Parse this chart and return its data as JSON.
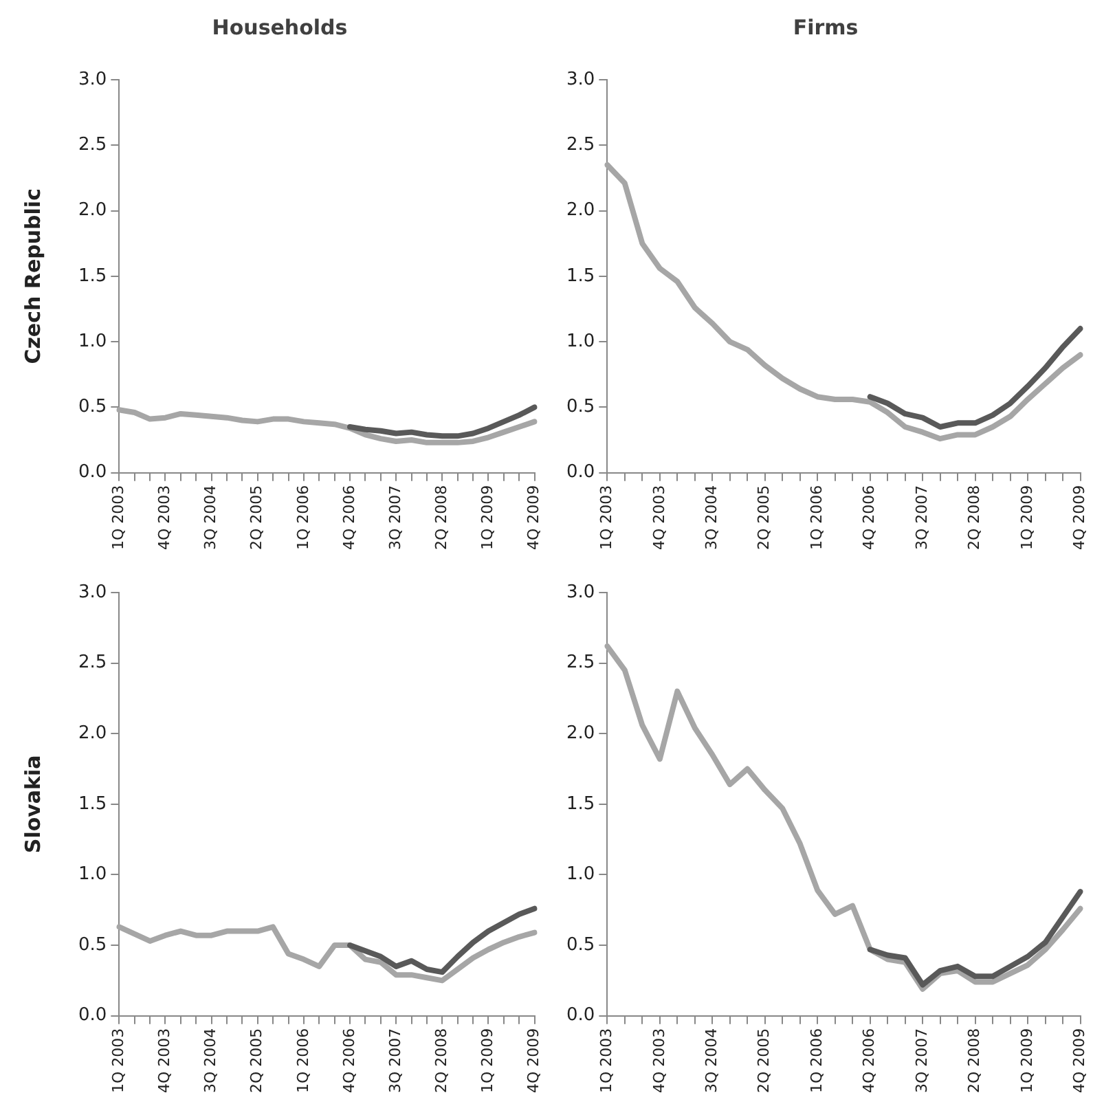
{
  "chart_data": [
    {
      "type": "line",
      "title": "Households",
      "ylabel": "Czech Republic",
      "categories": [
        "1Q 2003",
        null,
        null,
        "4Q 2003",
        null,
        null,
        "3Q 2004",
        null,
        null,
        "2Q 2005",
        null,
        null,
        "1Q 2006",
        null,
        null,
        "4Q 2006",
        null,
        null,
        "3Q 2007",
        null,
        null,
        "2Q 2008",
        null,
        null,
        "1Q 2009",
        null,
        null,
        "4Q 2009"
      ],
      "series": [
        {
          "color": "#595959",
          "values": [
            null,
            null,
            null,
            null,
            null,
            null,
            null,
            null,
            null,
            null,
            null,
            null,
            null,
            null,
            null,
            0.35,
            0.33,
            0.32,
            0.3,
            0.31,
            0.29,
            0.28,
            0.28,
            0.3,
            0.34,
            0.39,
            0.44,
            0.5
          ]
        },
        {
          "color": "#a6a6a6",
          "values": [
            0.48,
            0.46,
            0.41,
            0.42,
            0.45,
            0.44,
            0.43,
            0.42,
            0.4,
            0.39,
            0.41,
            0.41,
            0.39,
            0.38,
            0.37,
            0.34,
            0.29,
            0.26,
            0.24,
            0.25,
            0.23,
            0.23,
            0.23,
            0.24,
            0.27,
            0.31,
            0.35,
            0.39
          ]
        }
      ],
      "ylim": [
        0,
        3
      ],
      "yticks": [
        {
          "value": 0,
          "label": "0.0"
        },
        {
          "value": 0.5,
          "label": "0.5"
        },
        {
          "value": 1,
          "label": "1.0"
        },
        {
          "value": 1.5,
          "label": "1.5"
        },
        {
          "value": 2,
          "label": "2.0"
        },
        {
          "value": 2.5,
          "label": "2.5"
        },
        {
          "value": 3,
          "label": "3.0"
        }
      ],
      "marker": "none",
      "line_style": "solid"
    },
    {
      "type": "line",
      "title": "Firms",
      "categories": [
        "1Q 2003",
        null,
        null,
        "4Q 2003",
        null,
        null,
        "3Q 2004",
        null,
        null,
        "2Q 2005",
        null,
        null,
        "1Q 2006",
        null,
        null,
        "4Q 2006",
        null,
        null,
        "3Q 2007",
        null,
        null,
        "2Q 2008",
        null,
        null,
        "1Q 2009",
        null,
        null,
        "4Q 2009"
      ],
      "series": [
        {
          "color": "#595959",
          "values": [
            null,
            null,
            null,
            null,
            null,
            null,
            null,
            null,
            null,
            null,
            null,
            null,
            null,
            null,
            null,
            0.58,
            0.53,
            0.45,
            0.42,
            0.35,
            0.38,
            0.38,
            0.44,
            0.53,
            0.66,
            0.8,
            0.96,
            1.1
          ]
        },
        {
          "color": "#a6a6a6",
          "values": [
            2.35,
            2.21,
            1.75,
            1.56,
            1.46,
            1.26,
            1.14,
            1.0,
            0.94,
            0.82,
            0.72,
            0.64,
            0.58,
            0.56,
            0.56,
            0.54,
            0.46,
            0.35,
            0.31,
            0.26,
            0.29,
            0.29,
            0.35,
            0.43,
            0.56,
            0.68,
            0.8,
            0.9
          ]
        }
      ],
      "ylim": [
        0,
        3
      ],
      "yticks": [
        {
          "value": 0,
          "label": "0.0"
        },
        {
          "value": 0.5,
          "label": "0.5"
        },
        {
          "value": 1,
          "label": "1.0"
        },
        {
          "value": 1.5,
          "label": "1.5"
        },
        {
          "value": 2,
          "label": "2.0"
        },
        {
          "value": 2.5,
          "label": "2.5"
        },
        {
          "value": 3,
          "label": "3.0"
        }
      ],
      "marker": "none",
      "line_style": "solid"
    },
    {
      "type": "line",
      "ylabel": "Slovakia",
      "categories": [
        "1Q 2003",
        null,
        null,
        "4Q 2003",
        null,
        null,
        "3Q 2004",
        null,
        null,
        "2Q 2005",
        null,
        null,
        "1Q 2006",
        null,
        null,
        "4Q 2006",
        null,
        null,
        "3Q 2007",
        null,
        null,
        "2Q 2008",
        null,
        null,
        "1Q 2009",
        null,
        null,
        "4Q 2009"
      ],
      "series": [
        {
          "color": "#595959",
          "values": [
            null,
            null,
            null,
            null,
            null,
            null,
            null,
            null,
            null,
            null,
            null,
            null,
            null,
            null,
            null,
            0.5,
            0.46,
            0.42,
            0.35,
            0.39,
            0.33,
            0.31,
            0.42,
            0.52,
            0.6,
            0.66,
            0.72,
            0.76
          ]
        },
        {
          "color": "#a6a6a6",
          "values": [
            0.63,
            0.58,
            0.53,
            0.57,
            0.6,
            0.57,
            0.57,
            0.6,
            0.6,
            0.6,
            0.63,
            0.44,
            0.4,
            0.35,
            0.5,
            0.5,
            0.4,
            0.38,
            0.29,
            0.29,
            0.27,
            0.25,
            0.33,
            0.41,
            0.47,
            0.52,
            0.56,
            0.59
          ]
        }
      ],
      "ylim": [
        0,
        3
      ],
      "yticks": [
        {
          "value": 0,
          "label": "0.0"
        },
        {
          "value": 0.5,
          "label": "0.5"
        },
        {
          "value": 1,
          "label": "1.0"
        },
        {
          "value": 1.5,
          "label": "1.5"
        },
        {
          "value": 2,
          "label": "2.0"
        },
        {
          "value": 2.5,
          "label": "2.5"
        },
        {
          "value": 3,
          "label": "3.0"
        }
      ],
      "marker": "none",
      "line_style": "solid"
    },
    {
      "type": "line",
      "categories": [
        "1Q 2003",
        null,
        null,
        "4Q 2003",
        null,
        null,
        "3Q 2004",
        null,
        null,
        "2Q 2005",
        null,
        null,
        "1Q 2006",
        null,
        null,
        "4Q 2006",
        null,
        null,
        "3Q 2007",
        null,
        null,
        "2Q 2008",
        null,
        null,
        "1Q 2009",
        null,
        null,
        "4Q 2009"
      ],
      "series": [
        {
          "color": "#595959",
          "values": [
            null,
            null,
            null,
            null,
            null,
            null,
            null,
            null,
            null,
            null,
            null,
            null,
            null,
            null,
            null,
            0.47,
            0.43,
            0.41,
            0.22,
            0.32,
            0.35,
            0.28,
            0.28,
            0.35,
            0.42,
            0.52,
            0.7,
            0.88
          ]
        },
        {
          "color": "#a6a6a6",
          "values": [
            2.62,
            2.45,
            2.06,
            1.82,
            2.3,
            2.04,
            1.85,
            1.64,
            1.75,
            1.6,
            1.47,
            1.22,
            0.89,
            0.72,
            0.78,
            0.47,
            0.4,
            0.38,
            0.19,
            0.3,
            0.32,
            0.24,
            0.24,
            0.3,
            0.36,
            0.47,
            0.61,
            0.76
          ]
        }
      ],
      "ylim": [
        0,
        3
      ],
      "yticks": [
        {
          "value": 0,
          "label": "0.0"
        },
        {
          "value": 0.5,
          "label": "0.5"
        },
        {
          "value": 1,
          "label": "1.0"
        },
        {
          "value": 1.5,
          "label": "1.5"
        },
        {
          "value": 2,
          "label": "2.0"
        },
        {
          "value": 2.5,
          "label": "2.5"
        },
        {
          "value": 3,
          "label": "3.0"
        }
      ],
      "marker": "none",
      "line_style": "solid"
    }
  ]
}
